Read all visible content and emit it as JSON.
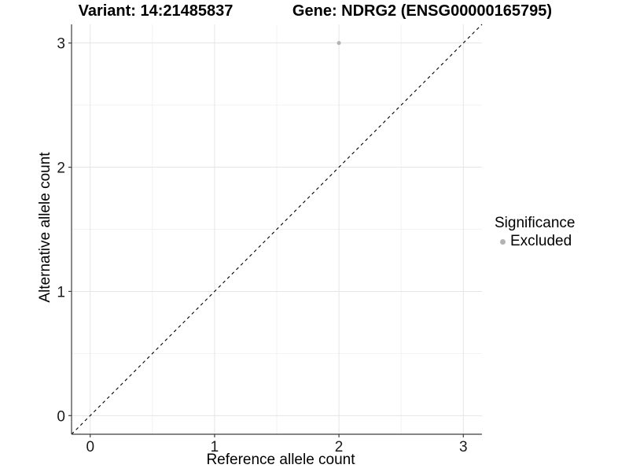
{
  "titles": {
    "variant": "Variant: 14:21485837",
    "gene": "Gene: NDRG2 (ENSG00000165795)"
  },
  "chart_data": {
    "type": "scatter",
    "xlabel": "Reference allele count",
    "ylabel": "Alternative allele count",
    "xlim": [
      -0.15,
      3.15
    ],
    "ylim": [
      -0.15,
      3.15
    ],
    "x_ticks": [
      0,
      1,
      2,
      3
    ],
    "y_ticks": [
      0,
      1,
      2,
      3
    ],
    "x_minor_ticks": [
      0.5,
      1.5,
      2.5
    ],
    "y_minor_ticks": [
      0.5,
      1.5,
      2.5
    ],
    "grid": true,
    "points": [
      {
        "x": 2,
        "y": 3,
        "series": "Excluded"
      }
    ],
    "reference_line": {
      "kind": "identity",
      "slope": 1,
      "intercept": 0,
      "style": "dashed"
    },
    "legend": {
      "position": "right",
      "title": "Significance",
      "items": [
        {
          "label": "Excluded",
          "color": "#b3b3b3"
        }
      ]
    }
  },
  "colors": {
    "background": "#ffffff",
    "title_text": "#000000",
    "tick_label": "#1a1a1a",
    "axis_line": "#3d3d3d",
    "grid_major": "#e5e5e5",
    "grid_minor": "#f2f2f2",
    "point": "#b3b3b3",
    "reference_line": "#000000"
  }
}
